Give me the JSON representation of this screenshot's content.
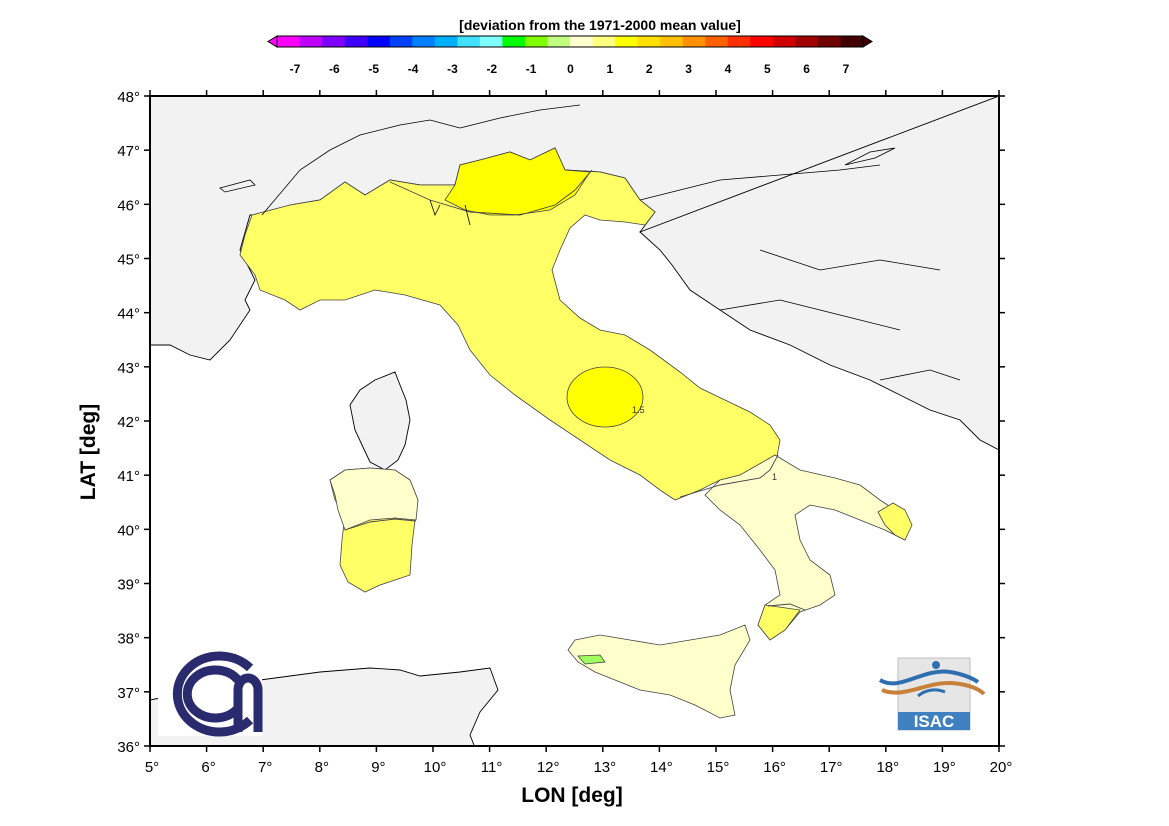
{
  "colorbar": {
    "title": "[deviation from the 1971-2000 mean value]",
    "ticks": [
      "-7",
      "-6",
      "-5",
      "-4",
      "-3",
      "-2",
      "-1",
      "0",
      "1",
      "2",
      "3",
      "4",
      "5",
      "6",
      "7"
    ],
    "colors": [
      "#ff00ff",
      "#c000ff",
      "#8000ff",
      "#4000ff",
      "#0000ff",
      "#0040ff",
      "#0080ff",
      "#00b0ff",
      "#40e0ff",
      "#80ffff",
      "#00ff00",
      "#80ff00",
      "#c0ff80",
      "#ffffd0",
      "#ffff80",
      "#ffff00",
      "#ffe000",
      "#ffc000",
      "#ff9000",
      "#ff6000",
      "#ff3000",
      "#ff0000",
      "#d00000",
      "#a00000",
      "#700000",
      "#400000"
    ]
  },
  "axes": {
    "xlabel": "LON [deg]",
    "ylabel": "LAT [deg]",
    "xticks": [
      "5°",
      "6°",
      "7°",
      "8°",
      "9°",
      "10°",
      "11°",
      "12°",
      "13°",
      "14°",
      "15°",
      "16°",
      "17°",
      "18°",
      "19°",
      "20°"
    ],
    "yticks": [
      "48°",
      "47°",
      "46°",
      "45°",
      "44°",
      "43°",
      "42°",
      "41°",
      "40°",
      "39°",
      "38°",
      "37°",
      "36°"
    ],
    "xlim": [
      5,
      20
    ],
    "ylim": [
      36,
      48
    ]
  },
  "contours": {
    "labels": [
      "1.5",
      "1"
    ]
  },
  "logos": {
    "left": "cnr-logo",
    "right_text": "ISAC"
  },
  "colors": {
    "sea": "#ffffff",
    "foreign_land": "#f2f2f2",
    "anomaly_high": "#ffff00",
    "anomaly_mid": "#ffff66",
    "anomaly_low": "#ffffcc",
    "anomaly_neg": "#a0ff60",
    "cnr_blue": "#2a2a6e",
    "isac_blue": "#2f6fb0",
    "isac_orange": "#c8803a"
  }
}
